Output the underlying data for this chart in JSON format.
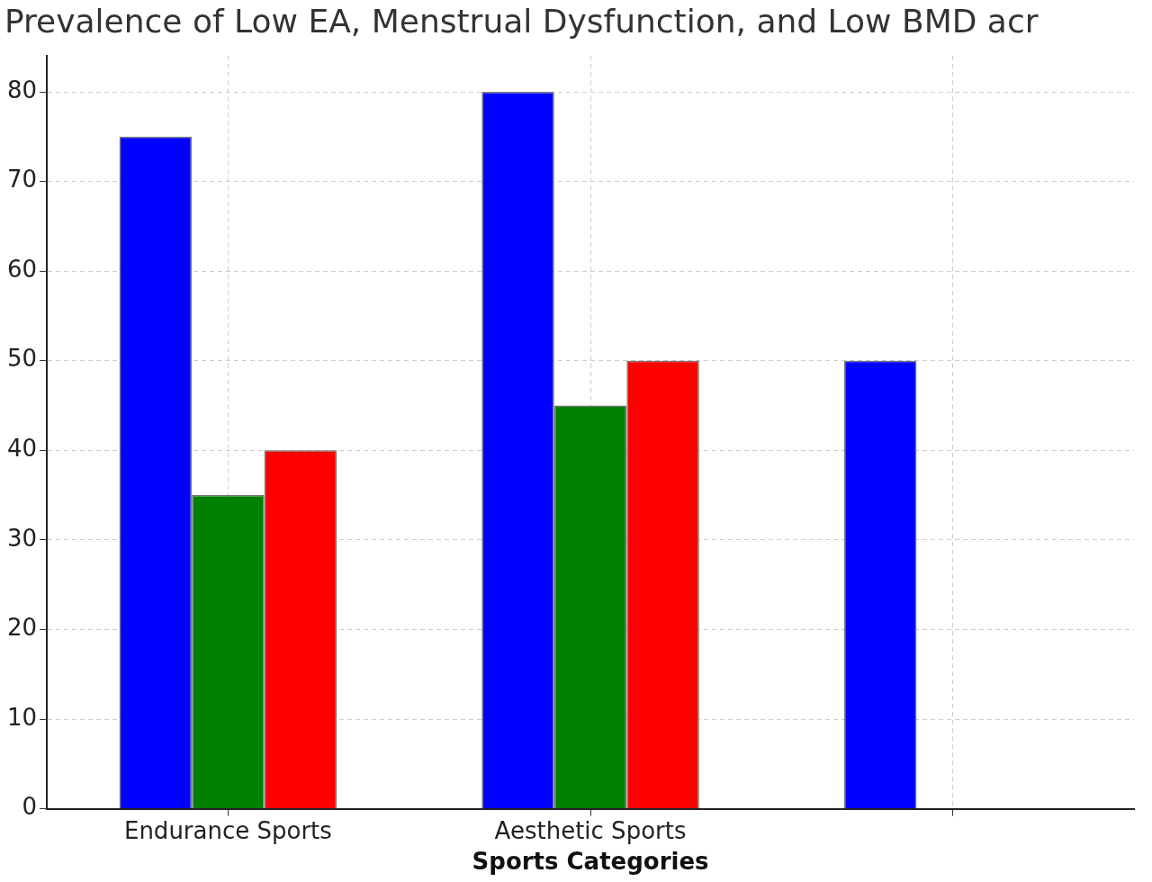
{
  "chart_data": {
    "type": "bar",
    "title": "Prevalence of Low EA, Menstrual Dysfunction, and Low BMD acr",
    "xlabel": "Sports Categories",
    "categories": [
      "Endurance Sports",
      "Aesthetic Sports",
      null
    ],
    "series": [
      {
        "color": "#0000ff",
        "values": [
          75,
          80,
          50
        ]
      },
      {
        "color": "#008000",
        "values": [
          35,
          45,
          null
        ]
      },
      {
        "color": "#ff0000",
        "values": [
          40,
          50,
          null
        ]
      }
    ],
    "ylim": [
      0,
      84
    ],
    "yticks": [
      0,
      10,
      20,
      30,
      40,
      50,
      60,
      70,
      80
    ],
    "grid": true
  }
}
